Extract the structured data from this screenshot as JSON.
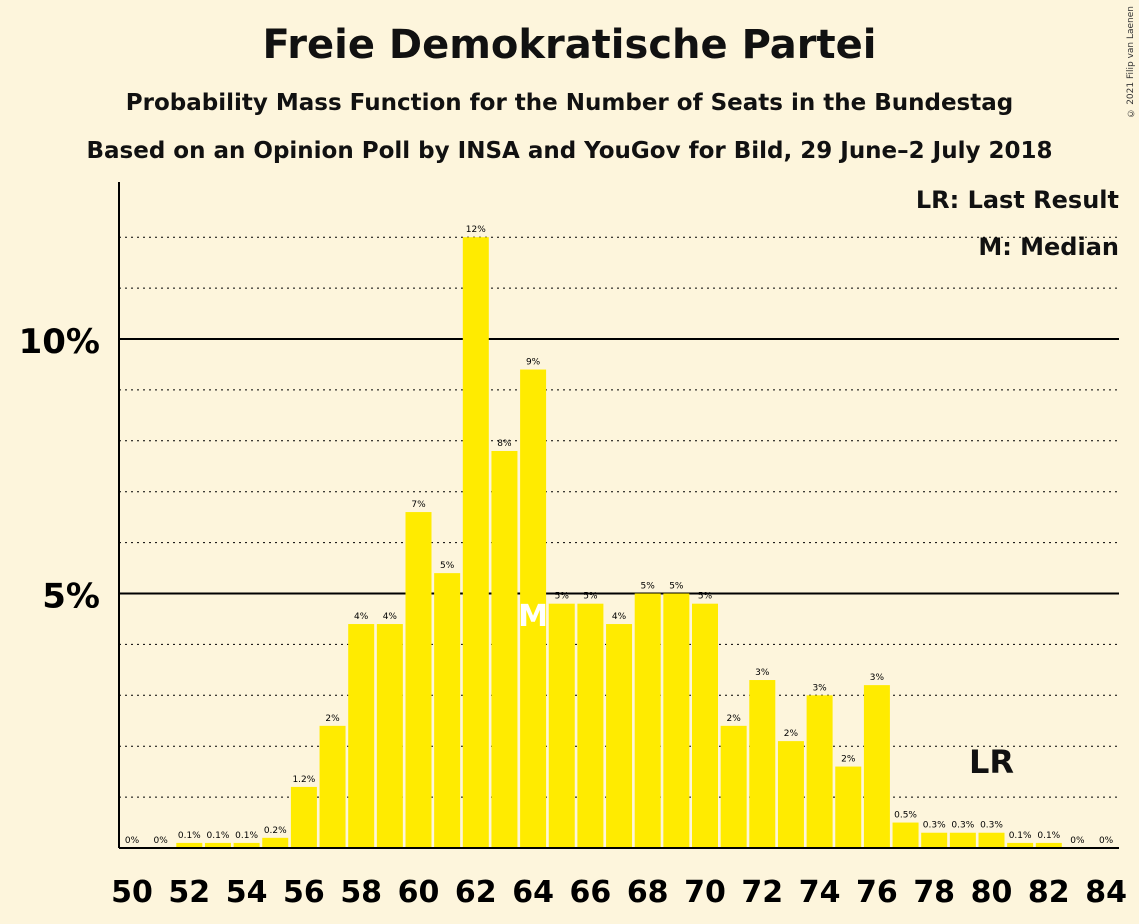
{
  "title": "Freie Demokratische Partei",
  "subtitle": "Probability Mass Function for the Number of Seats in the Bundestag",
  "subtitle2": "Based on an Opinion Poll by INSA and YouGov for Bild, 29 June–2 July 2018",
  "copyright": "© 2021 Filip van Laenen",
  "legend": {
    "lr": "LR: Last Result",
    "median": "M: Median"
  },
  "colors": {
    "bar": "#ffeb00",
    "background": "#fdf5dc",
    "axis": "#000000"
  },
  "chart_data": {
    "type": "bar",
    "x": [
      50,
      51,
      52,
      53,
      54,
      55,
      56,
      57,
      58,
      59,
      60,
      61,
      62,
      63,
      64,
      65,
      66,
      67,
      68,
      69,
      70,
      71,
      72,
      73,
      74,
      75,
      76,
      77,
      78,
      79,
      80,
      81,
      82,
      83,
      84
    ],
    "values": [
      0,
      0,
      0.1,
      0.1,
      0.1,
      0.2,
      1.2,
      2.4,
      4.4,
      4.4,
      6.6,
      5.4,
      12.0,
      7.8,
      9.4,
      4.8,
      4.8,
      4.4,
      5.0,
      5.0,
      4.8,
      2.4,
      3.3,
      2.1,
      3.0,
      1.6,
      3.2,
      0.5,
      0.3,
      0.3,
      0.3,
      0.1,
      0.1,
      0,
      0
    ],
    "labels": [
      "0%",
      "0%",
      "0.1%",
      "0.1%",
      "0.1%",
      "0.2%",
      "1.2%",
      "2%",
      "4%",
      "4%",
      "7%",
      "5%",
      "12%",
      "8%",
      "9%",
      "5%",
      "5%",
      "4%",
      "5%",
      "5%",
      "5%",
      "2%",
      "3%",
      "2%",
      "3%",
      "2%",
      "3%",
      "0.5%",
      "0.3%",
      "0.3%",
      "0.3%",
      "0.1%",
      "0.1%",
      "0%",
      "0%"
    ],
    "x_tick_labels": [
      "50",
      "52",
      "54",
      "56",
      "58",
      "60",
      "62",
      "64",
      "66",
      "68",
      "70",
      "72",
      "74",
      "76",
      "78",
      "80",
      "82",
      "84"
    ],
    "y_tick_labels": [
      "5%",
      "10%"
    ],
    "y_ticks": [
      5,
      10
    ],
    "ylim": [
      0,
      13
    ],
    "gridlines_dotted": [
      1,
      2,
      3,
      4,
      6,
      7,
      8,
      9,
      11,
      12
    ],
    "median": {
      "seat": 64,
      "label": "M"
    },
    "last_result": {
      "seat": 80,
      "label": "LR"
    }
  }
}
